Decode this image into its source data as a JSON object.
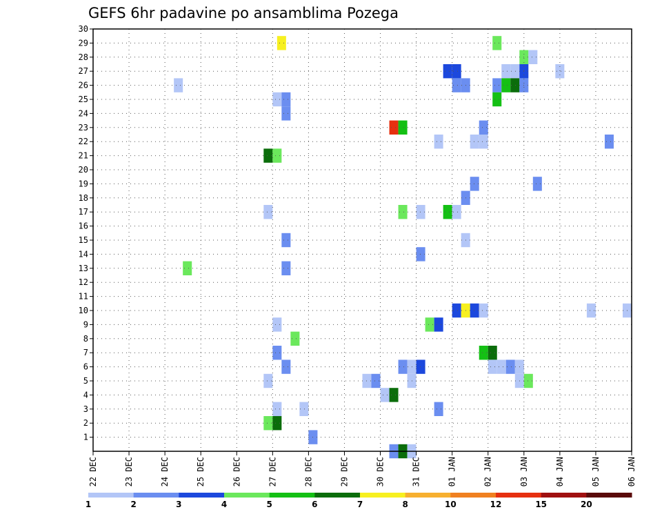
{
  "chart_data": {
    "type": "heatmap",
    "title": "GEFS 6hr padavine po ansamblima Pozega",
    "xlabel": "",
    "ylabel": "",
    "x_tick_labels": [
      "22 DEC",
      "23 DEC",
      "24 DEC",
      "25 DEC",
      "26 DEC",
      "27 DEC",
      "28 DEC",
      "29 DEC",
      "30 DEC",
      "31 DEC",
      "01 JAN",
      "02 JAN",
      "03 JAN",
      "04 JAN",
      "05 JAN",
      "06 JAN"
    ],
    "x_range_days": [
      0,
      15
    ],
    "y_tick_labels": [
      "1",
      "2",
      "3",
      "4",
      "5",
      "6",
      "7",
      "8",
      "9",
      "10",
      "11",
      "12",
      "13",
      "14",
      "15",
      "16",
      "17",
      "18",
      "19",
      "20",
      "21",
      "22",
      "23",
      "24",
      "25",
      "26",
      "27",
      "28",
      "29",
      "30"
    ],
    "y_range": [
      0,
      30
    ],
    "grid": true,
    "colorbar": {
      "labels": [
        "1",
        "2",
        "3",
        "4",
        "5",
        "6",
        "7",
        "8",
        "10",
        "12",
        "15",
        "20"
      ],
      "colors": [
        "#b3c6f7",
        "#6b8ef0",
        "#1c48dd",
        "#6be85c",
        "#14c014",
        "#0b6d0b",
        "#f7f020",
        "#f7b030",
        "#f08020",
        "#e63010",
        "#a01010",
        "#5a0a0a"
      ]
    },
    "cells": [
      [
        5.25,
        29,
        7
      ],
      [
        11.25,
        29,
        4
      ],
      [
        12.0,
        28,
        4
      ],
      [
        12.25,
        28,
        1
      ],
      [
        9.875,
        27,
        3
      ],
      [
        10.125,
        27,
        3
      ],
      [
        11.5,
        27,
        1
      ],
      [
        11.75,
        27,
        1
      ],
      [
        12.0,
        27,
        3
      ],
      [
        13.0,
        27,
        1
      ],
      [
        2.375,
        26,
        1
      ],
      [
        10.125,
        26,
        2
      ],
      [
        10.375,
        26,
        2
      ],
      [
        11.25,
        26,
        2
      ],
      [
        11.5,
        26,
        5
      ],
      [
        11.75,
        26,
        6
      ],
      [
        12.0,
        26,
        2
      ],
      [
        5.125,
        25,
        1
      ],
      [
        5.375,
        25,
        2
      ],
      [
        11.25,
        25,
        5
      ],
      [
        5.375,
        24,
        2
      ],
      [
        8.375,
        23,
        10
      ],
      [
        8.625,
        23,
        5
      ],
      [
        10.875,
        23,
        2
      ],
      [
        9.625,
        22,
        1
      ],
      [
        10.625,
        22,
        1
      ],
      [
        10.875,
        22,
        1
      ],
      [
        14.375,
        22,
        2
      ],
      [
        4.875,
        21,
        6
      ],
      [
        5.125,
        21,
        4
      ],
      [
        10.625,
        19,
        2
      ],
      [
        12.375,
        19,
        2
      ],
      [
        10.375,
        18,
        2
      ],
      [
        4.875,
        17,
        1
      ],
      [
        8.625,
        17,
        4
      ],
      [
        9.125,
        17,
        1
      ],
      [
        9.875,
        17,
        5
      ],
      [
        10.125,
        17,
        1
      ],
      [
        5.375,
        15,
        2
      ],
      [
        10.375,
        15,
        1
      ],
      [
        9.125,
        14,
        2
      ],
      [
        2.625,
        13,
        4
      ],
      [
        5.375,
        13,
        2
      ],
      [
        10.125,
        10,
        3
      ],
      [
        10.375,
        10,
        7
      ],
      [
        10.625,
        10,
        3
      ],
      [
        10.875,
        10,
        1
      ],
      [
        13.875,
        10,
        1
      ],
      [
        14.875,
        10,
        1
      ],
      [
        5.125,
        9,
        1
      ],
      [
        9.375,
        9,
        4
      ],
      [
        9.625,
        9,
        3
      ],
      [
        5.625,
        8,
        4
      ],
      [
        5.125,
        7,
        2
      ],
      [
        10.875,
        7,
        5
      ],
      [
        11.125,
        7,
        6
      ],
      [
        5.375,
        6,
        2
      ],
      [
        8.625,
        6,
        2
      ],
      [
        8.875,
        6,
        1
      ],
      [
        9.125,
        6,
        3
      ],
      [
        11.125,
        6,
        1
      ],
      [
        11.375,
        6,
        1
      ],
      [
        11.625,
        6,
        2
      ],
      [
        11.875,
        6,
        1
      ],
      [
        4.875,
        5,
        1
      ],
      [
        7.625,
        5,
        1
      ],
      [
        7.875,
        5,
        2
      ],
      [
        8.875,
        5,
        1
      ],
      [
        11.875,
        5,
        1
      ],
      [
        12.125,
        5,
        4
      ],
      [
        8.125,
        4,
        1
      ],
      [
        8.375,
        4,
        6
      ],
      [
        5.125,
        3,
        1
      ],
      [
        5.875,
        3,
        1
      ],
      [
        9.625,
        3,
        2
      ],
      [
        4.875,
        2,
        4
      ],
      [
        5.125,
        2,
        6
      ],
      [
        6.125,
        1,
        2
      ],
      [
        8.375,
        0,
        2
      ],
      [
        8.625,
        0,
        6
      ],
      [
        8.875,
        0,
        1
      ]
    ]
  }
}
